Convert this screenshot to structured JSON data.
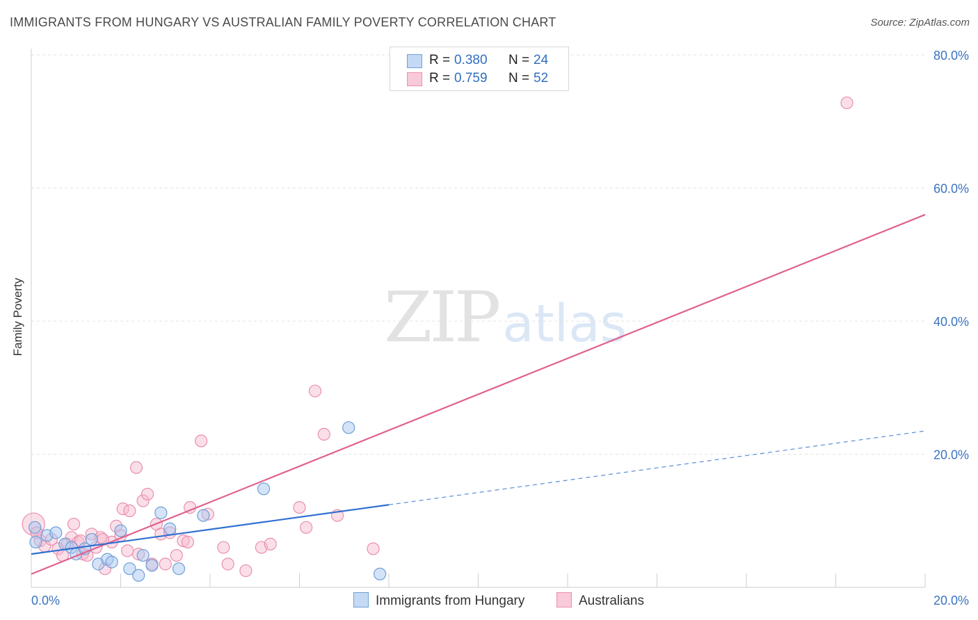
{
  "header": {
    "title": "IMMIGRANTS FROM HUNGARY VS AUSTRALIAN FAMILY POVERTY CORRELATION CHART",
    "source": "Source: ZipAtlas.com"
  },
  "watermark": {
    "zip": "ZIP",
    "atlas": "atlas"
  },
  "legend": {
    "rows": [
      {
        "r_label": "R =",
        "r_value": "0.380",
        "n_label": "N =",
        "n_value": "24"
      },
      {
        "r_label": "R =",
        "r_value": "0.759",
        "n_label": "N =",
        "n_value": "52"
      }
    ]
  },
  "bottom_legend": [
    "Immigrants from Hungary",
    "Australians"
  ],
  "colors": {
    "blue_fill": "#a9c8ef",
    "blue_stroke": "#6f9fd8",
    "blue_line": "#2f6fd0",
    "pink_fill": "#f6b8cc",
    "pink_stroke": "#e98fae",
    "pink_line": "#e0608e",
    "grid": "#e3e3e3",
    "tick_text": "#3a73c0"
  },
  "chart_data": {
    "type": "scatter",
    "title": "IMMIGRANTS FROM HUNGARY VS AUSTRALIAN FAMILY POVERTY CORRELATION CHART",
    "xlabel": "",
    "ylabel": "Family Poverty",
    "xlim": [
      0,
      20
    ],
    "ylim": [
      0,
      83
    ],
    "x_tick_labels": [
      {
        "value": 0,
        "label": "0.0%"
      },
      {
        "value": 20,
        "label": "20.0%"
      }
    ],
    "y_tick_labels": [
      {
        "value": 20,
        "label": "20.0%"
      },
      {
        "value": 40,
        "label": "40.0%"
      },
      {
        "value": 60,
        "label": "60.0%"
      },
      {
        "value": 80,
        "label": "80.0%"
      }
    ],
    "x_grid_minor": [
      2,
      4,
      6,
      8,
      10,
      12,
      14,
      16,
      18,
      20
    ],
    "legend_position": "top-center",
    "series": [
      {
        "name": "Immigrants from Hungary",
        "R": 0.38,
        "N": 24,
        "points": [
          {
            "x": 0.1,
            "y": 6.8
          },
          {
            "x": 0.35,
            "y": 7.8
          },
          {
            "x": 0.55,
            "y": 8.2
          },
          {
            "x": 0.75,
            "y": 6.5
          },
          {
            "x": 0.9,
            "y": 6.0
          },
          {
            "x": 1.0,
            "y": 5.0
          },
          {
            "x": 1.2,
            "y": 5.8
          },
          {
            "x": 1.35,
            "y": 7.2
          },
          {
            "x": 1.5,
            "y": 3.5
          },
          {
            "x": 1.7,
            "y": 4.2
          },
          {
            "x": 1.8,
            "y": 3.8
          },
          {
            "x": 2.0,
            "y": 8.5
          },
          {
            "x": 2.2,
            "y": 2.8
          },
          {
            "x": 2.4,
            "y": 1.8
          },
          {
            "x": 2.5,
            "y": 4.8
          },
          {
            "x": 2.7,
            "y": 3.3
          },
          {
            "x": 2.9,
            "y": 11.2
          },
          {
            "x": 3.1,
            "y": 8.8
          },
          {
            "x": 3.3,
            "y": 2.8
          },
          {
            "x": 3.85,
            "y": 10.8
          },
          {
            "x": 5.2,
            "y": 14.8
          },
          {
            "x": 7.1,
            "y": 24.0
          },
          {
            "x": 7.8,
            "y": 2.0
          },
          {
            "x": 0.08,
            "y": 9.0
          }
        ],
        "trend_solid": {
          "x1": 0.0,
          "y1": 5.0,
          "x2": 8.0,
          "y2": 12.4
        },
        "trend_dashed": {
          "x1": 8.0,
          "y1": 12.4,
          "x2": 20.0,
          "y2": 23.5
        }
      },
      {
        "name": "Australians",
        "R": 0.759,
        "N": 52,
        "points": [
          {
            "x": 0.05,
            "y": 9.5
          },
          {
            "x": 0.2,
            "y": 7.0
          },
          {
            "x": 0.3,
            "y": 6.2
          },
          {
            "x": 0.45,
            "y": 7.2
          },
          {
            "x": 0.6,
            "y": 5.8
          },
          {
            "x": 0.7,
            "y": 4.8
          },
          {
            "x": 0.8,
            "y": 6.5
          },
          {
            "x": 0.9,
            "y": 7.5
          },
          {
            "x": 0.95,
            "y": 9.5
          },
          {
            "x": 1.05,
            "y": 6.8
          },
          {
            "x": 1.15,
            "y": 5.0
          },
          {
            "x": 1.25,
            "y": 4.8
          },
          {
            "x": 1.35,
            "y": 8.0
          },
          {
            "x": 1.45,
            "y": 6.0
          },
          {
            "x": 1.55,
            "y": 7.5
          },
          {
            "x": 1.65,
            "y": 2.8
          },
          {
            "x": 1.8,
            "y": 6.8
          },
          {
            "x": 1.9,
            "y": 9.2
          },
          {
            "x": 2.0,
            "y": 7.8
          },
          {
            "x": 2.05,
            "y": 11.8
          },
          {
            "x": 2.2,
            "y": 11.5
          },
          {
            "x": 2.35,
            "y": 18.0
          },
          {
            "x": 2.4,
            "y": 5.0
          },
          {
            "x": 2.5,
            "y": 13.0
          },
          {
            "x": 2.6,
            "y": 14.0
          },
          {
            "x": 2.7,
            "y": 3.5
          },
          {
            "x": 2.8,
            "y": 9.5
          },
          {
            "x": 2.9,
            "y": 8.0
          },
          {
            "x": 3.0,
            "y": 3.5
          },
          {
            "x": 3.1,
            "y": 8.2
          },
          {
            "x": 3.25,
            "y": 4.8
          },
          {
            "x": 3.4,
            "y": 7.0
          },
          {
            "x": 3.5,
            "y": 6.8
          },
          {
            "x": 3.55,
            "y": 12.0
          },
          {
            "x": 3.8,
            "y": 22.0
          },
          {
            "x": 3.95,
            "y": 11.0
          },
          {
            "x": 4.3,
            "y": 6.0
          },
          {
            "x": 4.4,
            "y": 3.5
          },
          {
            "x": 4.8,
            "y": 2.5
          },
          {
            "x": 5.15,
            "y": 6.0
          },
          {
            "x": 5.35,
            "y": 6.5
          },
          {
            "x": 6.0,
            "y": 12.0
          },
          {
            "x": 6.15,
            "y": 9.0
          },
          {
            "x": 6.35,
            "y": 29.5
          },
          {
            "x": 6.55,
            "y": 23.0
          },
          {
            "x": 6.85,
            "y": 10.8
          },
          {
            "x": 7.65,
            "y": 5.8
          },
          {
            "x": 18.25,
            "y": 72.8
          },
          {
            "x": 0.12,
            "y": 8.2
          },
          {
            "x": 1.1,
            "y": 7.0
          },
          {
            "x": 1.6,
            "y": 7.2
          },
          {
            "x": 2.15,
            "y": 5.5
          }
        ],
        "trend_solid": {
          "x1": 0.0,
          "y1": 2.0,
          "x2": 20.0,
          "y2": 56.0
        }
      }
    ]
  }
}
